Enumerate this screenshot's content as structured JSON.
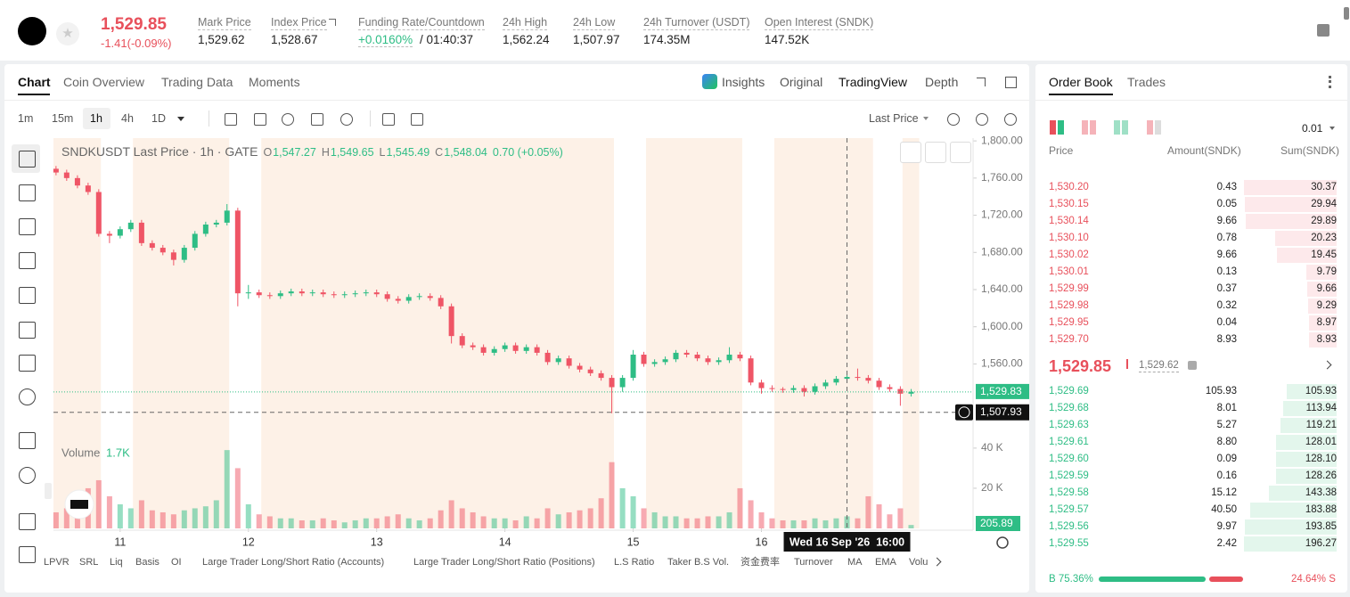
{
  "header": {
    "price": "1,529.85",
    "change": "-1.41(-0.09%)",
    "stats": [
      {
        "label": "Mark Price",
        "value": "1,529.62"
      },
      {
        "label": "Index Price",
        "value": "1,528.67"
      },
      {
        "label": "Funding Rate/Countdown",
        "value": "+0.0160%",
        "extra": "/ 01:40:37"
      },
      {
        "label": "24h High",
        "value": "1,562.24"
      },
      {
        "label": "24h Low",
        "value": "1,507.97"
      },
      {
        "label": "24h Turnover (USDT)",
        "value": "174.35M"
      },
      {
        "label": "Open Interest (SNDK)",
        "value": "147.52K"
      }
    ]
  },
  "chart_tabs": [
    "Chart",
    "Coin Overview",
    "Trading Data",
    "Moments"
  ],
  "view_tabs": [
    "Insights",
    "Original",
    "TradingView",
    "Depth"
  ],
  "intervals": [
    "1m",
    "15m",
    "1h",
    "4h",
    "1D"
  ],
  "price_type": "Last Price",
  "chart_data": {
    "type": "candlestick",
    "symbol_line": "SNDKUSDT Last Price · 1h · GATE",
    "ohlc_legend": [
      {
        "key": "O",
        "value": "1,547.27"
      },
      {
        "key": "H",
        "value": "1,549.65"
      },
      {
        "key": "L",
        "value": "1,545.49"
      },
      {
        "key": "C",
        "value": "1,548.04"
      }
    ],
    "change_legend": "0.70 (+0.05%)",
    "up_color": "#2ebd85",
    "down_color": "#ef5566",
    "shade_color": "#fdf1e7",
    "x": [
      10.5,
      10.583,
      10.667,
      10.75,
      10.833,
      10.917,
      11,
      11.083,
      11.167,
      11.25,
      11.333,
      11.417,
      11.5,
      11.583,
      11.667,
      11.75,
      11.833,
      11.917,
      12,
      12.083,
      12.167,
      12.25,
      12.333,
      12.417,
      12.5,
      12.583,
      12.667,
      12.75,
      12.833,
      12.917,
      13,
      13.083,
      13.167,
      13.25,
      13.333,
      13.417,
      13.5,
      13.583,
      13.667,
      13.75,
      13.833,
      13.917,
      14,
      14.083,
      14.167,
      14.25,
      14.333,
      14.417,
      14.5,
      14.583,
      14.667,
      14.75,
      14.833,
      14.917,
      15,
      15.083,
      15.167,
      15.25,
      15.333,
      15.417,
      15.5,
      15.583,
      15.667,
      15.75,
      15.833,
      15.917,
      16,
      16.083,
      16.167,
      16.25,
      16.333,
      16.417,
      16.5,
      16.583,
      16.667,
      16.75,
      16.833,
      16.917,
      17,
      17.083,
      17.167
    ],
    "open": [
      1770,
      1766,
      1760,
      1752,
      1745,
      1700,
      1698,
      1705,
      1712,
      1690,
      1685,
      1680,
      1672,
      1685,
      1700,
      1710,
      1712,
      1725,
      1636,
      1637,
      1634,
      1633,
      1636,
      1638,
      1636,
      1637,
      1635,
      1634,
      1635,
      1636,
      1637,
      1635,
      1630,
      1628,
      1632,
      1633,
      1631,
      1622,
      1590,
      1580,
      1578,
      1572,
      1576,
      1580,
      1574,
      1578,
      1572,
      1562,
      1566,
      1558,
      1554,
      1550,
      1545,
      1535,
      1545,
      1570,
      1560,
      1562,
      1565,
      1572,
      1570,
      1566,
      1562,
      1564,
      1570,
      1566,
      1540,
      1534,
      1533,
      1532,
      1534,
      1530,
      1536,
      1540,
      1544,
      1546,
      1545,
      1542,
      1535,
      1533,
      1528
    ],
    "high": [
      1773,
      1769,
      1763,
      1755,
      1748,
      1703,
      1708,
      1715,
      1715,
      1693,
      1688,
      1683,
      1688,
      1703,
      1713,
      1715,
      1732,
      1728,
      1645,
      1640,
      1637,
      1639,
      1641,
      1641,
      1640,
      1640,
      1638,
      1638,
      1639,
      1640,
      1640,
      1638,
      1633,
      1635,
      1636,
      1636,
      1634,
      1625,
      1593,
      1583,
      1581,
      1579,
      1583,
      1583,
      1581,
      1581,
      1575,
      1569,
      1569,
      1561,
      1557,
      1553,
      1548,
      1548,
      1575,
      1573,
      1565,
      1568,
      1575,
      1575,
      1573,
      1569,
      1567,
      1578,
      1573,
      1569,
      1543,
      1537,
      1535,
      1537,
      1537,
      1539,
      1543,
      1547,
      1550,
      1555,
      1548,
      1545,
      1538,
      1536,
      1533
    ],
    "low": [
      1763,
      1757,
      1749,
      1742,
      1697,
      1690,
      1695,
      1702,
      1687,
      1682,
      1677,
      1666,
      1669,
      1682,
      1697,
      1707,
      1709,
      1622,
      1630,
      1631,
      1630,
      1630,
      1633,
      1633,
      1633,
      1632,
      1631,
      1631,
      1632,
      1633,
      1632,
      1627,
      1625,
      1625,
      1629,
      1628,
      1619,
      1582,
      1577,
      1575,
      1569,
      1569,
      1573,
      1571,
      1571,
      1569,
      1559,
      1559,
      1555,
      1551,
      1547,
      1542,
      1507,
      1530,
      1542,
      1557,
      1557,
      1559,
      1562,
      1567,
      1563,
      1559,
      1559,
      1561,
      1563,
      1537,
      1528,
      1530,
      1529,
      1529,
      1525,
      1527,
      1533,
      1537,
      1541,
      1542,
      1539,
      1532,
      1530,
      1515,
      1525
    ],
    "close": [
      1766,
      1760,
      1752,
      1745,
      1700,
      1698,
      1705,
      1712,
      1690,
      1685,
      1680,
      1672,
      1685,
      1700,
      1710,
      1712,
      1725,
      1636,
      1637,
      1634,
      1633,
      1636,
      1638,
      1636,
      1637,
      1635,
      1634,
      1635,
      1636,
      1637,
      1635,
      1630,
      1628,
      1632,
      1633,
      1631,
      1622,
      1590,
      1580,
      1578,
      1572,
      1576,
      1580,
      1574,
      1578,
      1572,
      1562,
      1566,
      1558,
      1554,
      1550,
      1545,
      1535,
      1545,
      1570,
      1560,
      1562,
      1565,
      1572,
      1570,
      1566,
      1562,
      1564,
      1570,
      1566,
      1540,
      1534,
      1533,
      1532,
      1534,
      1530,
      1536,
      1540,
      1544,
      1546,
      1545,
      1542,
      1535,
      1533,
      1528,
      1530
    ],
    "xlim": [
      10.48,
      17.65
    ],
    "xticks": [
      11,
      12,
      13,
      14,
      15,
      16
    ],
    "ylim": [
      1477,
      1803
    ],
    "yticks": [
      {
        "value": 1560,
        "label": "1,560.00"
      },
      {
        "value": 1600,
        "label": "1,600.00"
      },
      {
        "value": 1640,
        "label": "1,640.00"
      },
      {
        "value": 1680,
        "label": "1,680.00"
      },
      {
        "value": 1720,
        "label": "1,720.00"
      },
      {
        "value": 1760,
        "label": "1,760.00"
      },
      {
        "value": 1800,
        "label": "1,800.00"
      }
    ],
    "grid": false,
    "shaded_ranges": [
      [
        10.48,
        10.85
      ],
      [
        11.1,
        11.85
      ],
      [
        12.1,
        14.85
      ],
      [
        15.1,
        15.85
      ],
      [
        16.1,
        16.87
      ],
      [
        17.1,
        17.23
      ]
    ],
    "last_price": {
      "value": 1529.83,
      "label": "1,529.83"
    },
    "crosshair": {
      "price": 1507.93,
      "price_label": "1,507.93",
      "x": 16.667,
      "x_label": "Wed 16 Sep '26  16:00"
    },
    "volume": {
      "title": "Volume",
      "last_label": "1.7K",
      "axis_badge": "205.89",
      "values": [
        8000,
        10000,
        12000,
        20000,
        24000,
        16000,
        12000,
        10000,
        14000,
        9000,
        8000,
        7000,
        9000,
        10000,
        11000,
        14000,
        39000,
        30000,
        12000,
        7000,
        6000,
        5000,
        5000,
        4000,
        4000,
        5000,
        4000,
        3000,
        4000,
        5000,
        5000,
        6000,
        7000,
        5000,
        4000,
        5000,
        9000,
        14000,
        10000,
        8000,
        6000,
        5000,
        5000,
        4000,
        6000,
        5000,
        10000,
        7000,
        8000,
        9000,
        10000,
        15000,
        33000,
        20000,
        16000,
        10000,
        8000,
        6000,
        6000,
        5000,
        5000,
        6000,
        6000,
        8000,
        20000,
        14000,
        8000,
        5000,
        4000,
        4000,
        4000,
        5000,
        4000,
        5000,
        6000,
        5000,
        16000,
        12000,
        7000,
        10000,
        1700
      ],
      "ylim": [
        0,
        43500
      ],
      "yticks": [
        {
          "value": 20000,
          "label": "20 K"
        },
        {
          "value": 40000,
          "label": "40 K"
        }
      ]
    }
  },
  "indicators": [
    "LPVR",
    "SRL",
    "Liq",
    "Basis",
    "OI",
    "Large Trader Long/Short Ratio (Accounts)",
    "Large Trader Long/Short Ratio (Positions)",
    "L.S Ratio",
    "Taker B.S Vol.",
    "资金费率",
    "Turnover",
    "MA",
    "EMA",
    "Volu"
  ],
  "order_book": {
    "tabs": [
      "Order Book",
      "Trades"
    ],
    "precision": "0.01",
    "columns": [
      "Price",
      "Amount(SNDK)",
      "Sum(SNDK)"
    ],
    "asks": [
      [
        "1,530.20",
        "0.43",
        "30.37"
      ],
      [
        "1,530.15",
        "0.05",
        "29.94"
      ],
      [
        "1,530.14",
        "9.66",
        "29.89"
      ],
      [
        "1,530.10",
        "0.78",
        "20.23"
      ],
      [
        "1,530.02",
        "9.66",
        "19.45"
      ],
      [
        "1,530.01",
        "0.13",
        "9.79"
      ],
      [
        "1,529.99",
        "0.37",
        "9.66"
      ],
      [
        "1,529.98",
        "0.32",
        "9.29"
      ],
      [
        "1,529.95",
        "0.04",
        "8.97"
      ],
      [
        "1,529.70",
        "8.93",
        "8.93"
      ]
    ],
    "last_price": "1,529.85",
    "mark_price": "1,529.62",
    "bids": [
      [
        "1,529.69",
        "105.93",
        "105.93"
      ],
      [
        "1,529.68",
        "8.01",
        "113.94"
      ],
      [
        "1,529.63",
        "5.27",
        "119.21"
      ],
      [
        "1,529.61",
        "8.80",
        "128.01"
      ],
      [
        "1,529.60",
        "0.09",
        "128.10"
      ],
      [
        "1,529.59",
        "0.16",
        "128.26"
      ],
      [
        "1,529.58",
        "15.12",
        "143.38"
      ],
      [
        "1,529.57",
        "40.50",
        "183.88"
      ],
      [
        "1,529.56",
        "9.97",
        "193.85"
      ],
      [
        "1,529.55",
        "2.42",
        "196.27"
      ]
    ],
    "buy_ratio": {
      "value": 75.36,
      "label": "B 75.36%"
    },
    "sell_ratio": {
      "value": 24.64,
      "label": "24.64% S"
    }
  }
}
